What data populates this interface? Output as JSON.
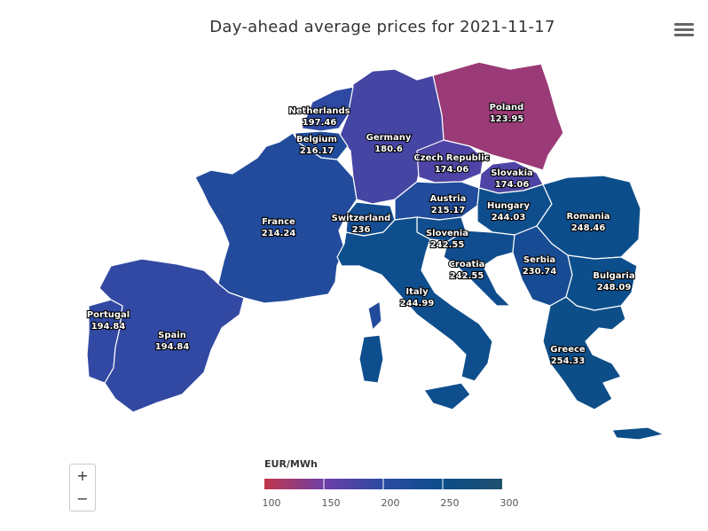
{
  "title": "Day-ahead average prices for 2021-11-17",
  "legend": {
    "title": "EUR/MWh",
    "min": 100,
    "max": 300,
    "ticks": [
      "100",
      "150",
      "200",
      "250",
      "300"
    ],
    "stops": [
      "#c2374a",
      "#6e3ea6",
      "#2b4aa3",
      "#0b4e8a",
      "#1f4f6e"
    ]
  },
  "zoom": {
    "in_label": "+",
    "out_label": "−"
  },
  "countries": [
    {
      "name": "Poland",
      "price": "123.95",
      "value": 123.95
    },
    {
      "name": "Netherlands",
      "price": "197.46",
      "value": 197.46
    },
    {
      "name": "Belgium",
      "price": "216.17",
      "value": 216.17
    },
    {
      "name": "Germany",
      "price": "180.6",
      "value": 180.6
    },
    {
      "name": "Czech Republic",
      "price": "174.06",
      "value": 174.06
    },
    {
      "name": "Slovakia",
      "price": "174.06",
      "value": 174.06
    },
    {
      "name": "Austria",
      "price": "215.17",
      "value": 215.17
    },
    {
      "name": "Hungary",
      "price": "244.03",
      "value": 244.03
    },
    {
      "name": "Romania",
      "price": "248.46",
      "value": 248.46
    },
    {
      "name": "France",
      "price": "214.24",
      "value": 214.24
    },
    {
      "name": "Switzerland",
      "price": "236",
      "value": 236
    },
    {
      "name": "Slovenia",
      "price": "242.55",
      "value": 242.55
    },
    {
      "name": "Croatia",
      "price": "242.55",
      "value": 242.55
    },
    {
      "name": "Serbia",
      "price": "230.74",
      "value": 230.74
    },
    {
      "name": "Bulgaria",
      "price": "248.09",
      "value": 248.09
    },
    {
      "name": "Italy",
      "price": "244.99",
      "value": 244.99
    },
    {
      "name": "Portugal",
      "price": "194.84",
      "value": 194.84
    },
    {
      "name": "Spain",
      "price": "194.84",
      "value": 194.84
    },
    {
      "name": "Greece",
      "price": "254.33",
      "value": 254.33
    }
  ]
}
